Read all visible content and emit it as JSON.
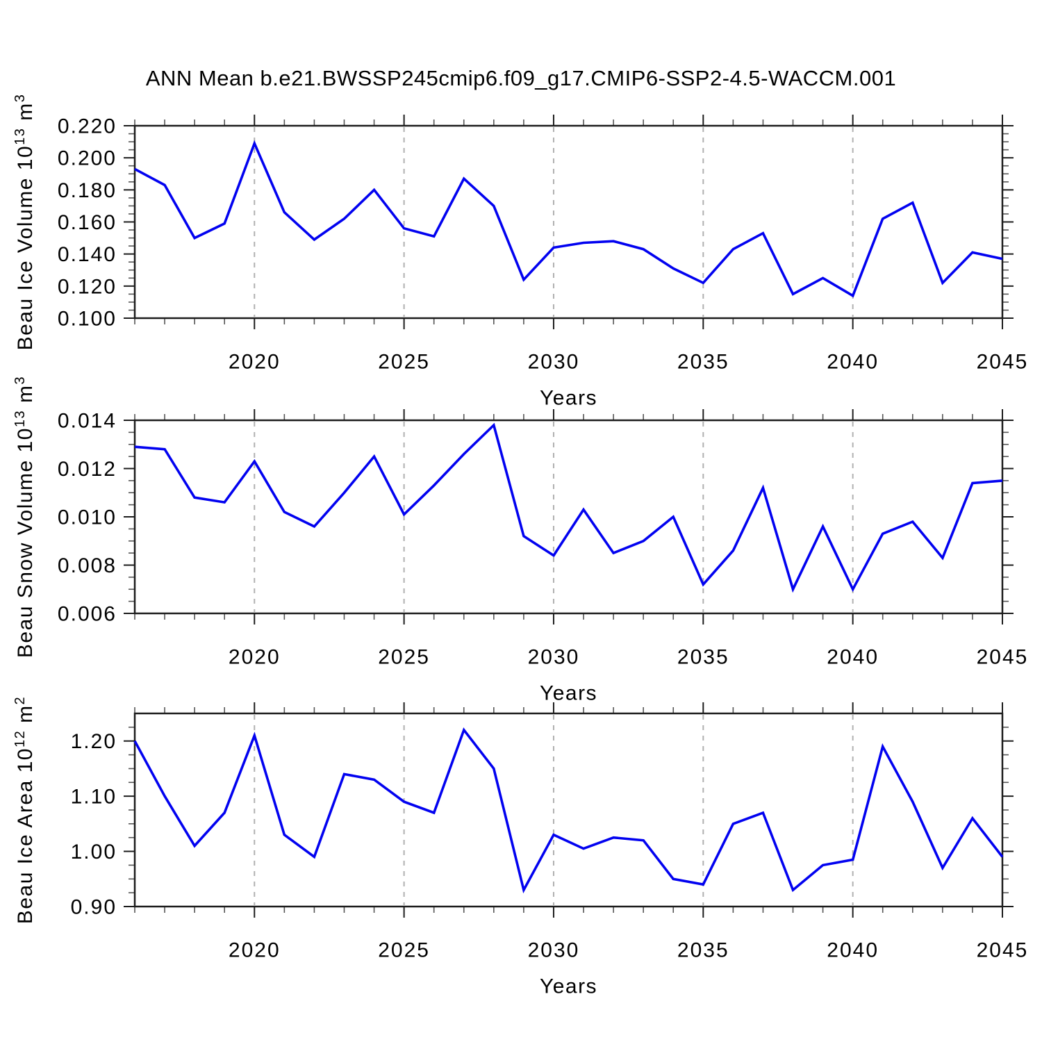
{
  "title": "ANN Mean b.e21.BWSSP245cmip6.f09_g17.CMIP6-SSP2-4.5-WACCM.001",
  "colors": {
    "line": "#0202f0",
    "grid": "#b0b0b0",
    "frame": "#1c1c1c",
    "tick_major": "#1c1c1c",
    "tick_minor": "#555555",
    "text": "#000000"
  },
  "x_axis": {
    "label": "Years",
    "min": 2016,
    "max": 2045,
    "major_ticks": [
      2020,
      2025,
      2030,
      2035,
      2040,
      2045
    ],
    "major_tick_labels": [
      "2020",
      "2025",
      "2030",
      "2035",
      "2040",
      "2045"
    ],
    "minor_step_years": 1,
    "grid_years": [
      2020,
      2025,
      2030,
      2035,
      2040
    ]
  },
  "chart_data": [
    {
      "type": "line",
      "id": "beau-ice-volume",
      "ylabel": "Beau Ice Volume 10^13 m^3",
      "ylabel_parts": [
        {
          "t": "Beau Ice Volume 10"
        },
        {
          "t": "13",
          "sup": true
        },
        {
          "t": " m"
        },
        {
          "t": "3",
          "sup": true
        }
      ],
      "xlabel": "Years",
      "ylim": [
        0.1,
        0.22
      ],
      "y_major_ticks": [
        0.1,
        0.12,
        0.14,
        0.16,
        0.18,
        0.2,
        0.22
      ],
      "y_tick_labels": [
        "0.100",
        "0.120",
        "0.140",
        "0.160",
        "0.180",
        "0.200",
        "0.220"
      ],
      "y_minor_step": 0.005,
      "grid": "vertical-dashed",
      "legend": "none",
      "x": [
        2016,
        2017,
        2018,
        2019,
        2020,
        2021,
        2022,
        2023,
        2024,
        2025,
        2026,
        2027,
        2028,
        2029,
        2030,
        2031,
        2032,
        2033,
        2034,
        2035,
        2036,
        2037,
        2038,
        2039,
        2040,
        2041,
        2042,
        2043,
        2044,
        2045
      ],
      "values": [
        0.193,
        0.183,
        0.15,
        0.159,
        0.209,
        0.166,
        0.149,
        0.162,
        0.18,
        0.156,
        0.151,
        0.187,
        0.17,
        0.124,
        0.144,
        0.147,
        0.148,
        0.143,
        0.131,
        0.122,
        0.143,
        0.153,
        0.115,
        0.125,
        0.114,
        0.162,
        0.172,
        0.122,
        0.141,
        0.137
      ]
    },
    {
      "type": "line",
      "id": "beau-snow-volume",
      "ylabel": "Beau Snow Volume 10^13 m^3",
      "ylabel_parts": [
        {
          "t": "Beau Snow Volume 10"
        },
        {
          "t": "13",
          "sup": true
        },
        {
          "t": " m"
        },
        {
          "t": "3",
          "sup": true
        }
      ],
      "xlabel": "Years",
      "ylim": [
        0.006,
        0.014
      ],
      "y_major_ticks": [
        0.006,
        0.008,
        0.01,
        0.012,
        0.014
      ],
      "y_tick_labels": [
        "0.006",
        "0.008",
        "0.010",
        "0.012",
        "0.014"
      ],
      "y_minor_step": 0.0005,
      "grid": "vertical-dashed",
      "legend": "none",
      "x": [
        2016,
        2017,
        2018,
        2019,
        2020,
        2021,
        2022,
        2023,
        2024,
        2025,
        2026,
        2027,
        2028,
        2029,
        2030,
        2031,
        2032,
        2033,
        2034,
        2035,
        2036,
        2037,
        2038,
        2039,
        2040,
        2041,
        2042,
        2043,
        2044,
        2045
      ],
      "values": [
        0.0129,
        0.0128,
        0.0108,
        0.0106,
        0.0123,
        0.0102,
        0.0096,
        0.011,
        0.0125,
        0.0101,
        0.0113,
        0.0126,
        0.0138,
        0.0092,
        0.0084,
        0.0103,
        0.0085,
        0.009,
        0.01,
        0.0072,
        0.0086,
        0.0112,
        0.007,
        0.0096,
        0.007,
        0.0093,
        0.0098,
        0.0083,
        0.0114,
        0.0115
      ]
    },
    {
      "type": "line",
      "id": "beau-ice-area",
      "ylabel": "Beau Ice Area 10^12 m^2",
      "ylabel_parts": [
        {
          "t": "Beau Ice Area 10"
        },
        {
          "t": "12",
          "sup": true
        },
        {
          "t": " m"
        },
        {
          "t": "2",
          "sup": true
        }
      ],
      "xlabel": "Years",
      "ylim": [
        0.9,
        1.25
      ],
      "y_major_ticks": [
        0.9,
        1.0,
        1.1,
        1.2
      ],
      "y_tick_labels": [
        "0.90",
        "1.00",
        "1.10",
        "1.20"
      ],
      "y_minor_step": 0.025,
      "grid": "vertical-dashed",
      "legend": "none",
      "x": [
        2016,
        2017,
        2018,
        2019,
        2020,
        2021,
        2022,
        2023,
        2024,
        2025,
        2026,
        2027,
        2028,
        2029,
        2030,
        2031,
        2032,
        2033,
        2034,
        2035,
        2036,
        2037,
        2038,
        2039,
        2040,
        2041,
        2042,
        2043,
        2044,
        2045
      ],
      "values": [
        1.2,
        1.1,
        1.01,
        1.07,
        1.21,
        1.03,
        0.99,
        1.14,
        1.13,
        1.09,
        1.07,
        1.22,
        1.15,
        0.93,
        1.03,
        1.005,
        1.025,
        1.02,
        0.95,
        0.94,
        1.05,
        1.07,
        0.93,
        0.975,
        0.985,
        1.19,
        1.09,
        0.97,
        1.06,
        0.99
      ]
    }
  ]
}
